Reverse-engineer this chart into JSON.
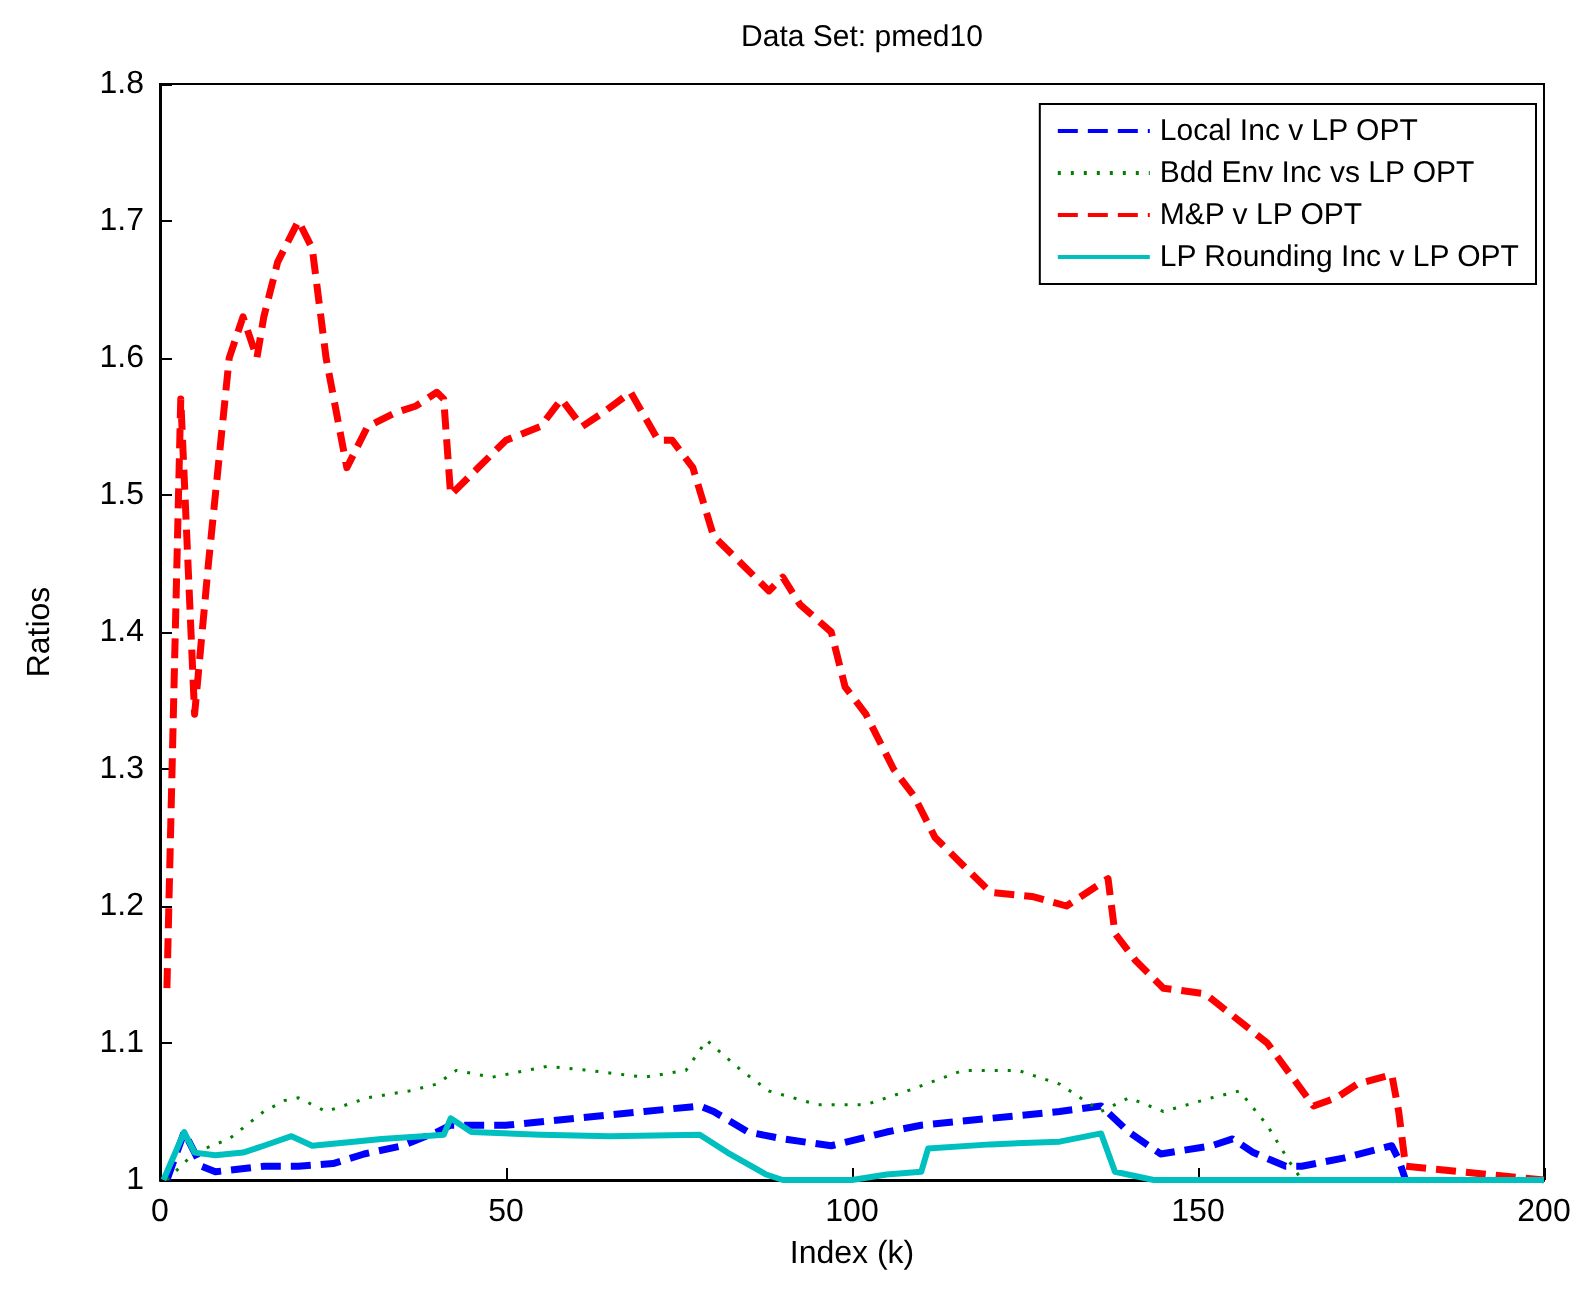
{
  "chart_data": {
    "type": "line",
    "title": "Data Set: pmed10",
    "xlabel": "Index (k)",
    "ylabel": "Ratios",
    "xlim": [
      0,
      200
    ],
    "xticks": [
      0,
      50,
      100,
      150,
      200
    ],
    "ylim": [
      1,
      1.8
    ],
    "yticks": [
      1,
      1.1,
      1.2,
      1.3,
      1.4,
      1.5,
      1.6,
      1.7,
      1.8
    ],
    "grid": false,
    "legend": "top right",
    "series": [
      {
        "name": "Local Inc v LP OPT",
        "color": "#0000ff",
        "line_style": "dashed",
        "x": [
          1,
          3.5,
          6,
          8,
          15,
          20,
          25,
          29.5,
          35,
          40,
          42,
          50,
          60,
          70,
          78,
          80,
          85,
          90,
          97,
          105,
          110,
          120,
          130,
          136,
          140,
          144.6,
          152,
          155,
          158,
          162.7,
          165,
          171,
          178,
          179,
          180
        ],
        "values": [
          1,
          1.035,
          1.01,
          1.006,
          1.01,
          1.01,
          1.012,
          1.019,
          1.025,
          1.035,
          1.04,
          1.04,
          1.045,
          1.05,
          1.054,
          1.05,
          1.035,
          1.03,
          1.025,
          1.035,
          1.04,
          1.045,
          1.05,
          1.054,
          1.035,
          1.019,
          1.025,
          1.03,
          1.02,
          1.01,
          1.01,
          1.016,
          1.025,
          1.015,
          1
        ]
      },
      {
        "name": "Bdd Env Inc vs LP OPT",
        "color": "#008000",
        "line_style": "dotted",
        "x": [
          1,
          5,
          10,
          15,
          18,
          20,
          24,
          30,
          36,
          40,
          42.8,
          48,
          56,
          62,
          70,
          76,
          79,
          84,
          88,
          95,
          102,
          108,
          116,
          124,
          130,
          136,
          140,
          145,
          152,
          156,
          160,
          163,
          165,
          200
        ],
        "values": [
          1,
          1.02,
          1.03,
          1.05,
          1.058,
          1.06,
          1.05,
          1.06,
          1.065,
          1.07,
          1.08,
          1.075,
          1.083,
          1.08,
          1.075,
          1.08,
          1.102,
          1.08,
          1.065,
          1.055,
          1.055,
          1.065,
          1.08,
          1.08,
          1.07,
          1.05,
          1.06,
          1.05,
          1.06,
          1.065,
          1.04,
          1.015,
          1,
          1
        ]
      },
      {
        "name": "M&P v LP OPT",
        "color": "#ff0000",
        "line_style": "dashed",
        "x": [
          1,
          3,
          5,
          7,
          10,
          12,
          14,
          15,
          17,
          20,
          22,
          24,
          27,
          30,
          34,
          37,
          40,
          41,
          42,
          46,
          50,
          55,
          58,
          61,
          64,
          68,
          72,
          74,
          77,
          80,
          84,
          88,
          90,
          92.5,
          97,
          99,
          102,
          106,
          109,
          112,
          116,
          120,
          126,
          131,
          137,
          138,
          141,
          145,
          151,
          155,
          160,
          166.7,
          170,
          173,
          178,
          179,
          180,
          200
        ],
        "values": [
          1.14,
          1.57,
          1.34,
          1.45,
          1.6,
          1.63,
          1.6,
          1.63,
          1.67,
          1.7,
          1.68,
          1.6,
          1.52,
          1.55,
          1.56,
          1.565,
          1.575,
          1.57,
          1.5,
          1.52,
          1.54,
          1.55,
          1.57,
          1.55,
          1.56,
          1.575,
          1.54,
          1.54,
          1.52,
          1.47,
          1.45,
          1.43,
          1.44,
          1.42,
          1.4,
          1.36,
          1.34,
          1.3,
          1.28,
          1.25,
          1.23,
          1.21,
          1.207,
          1.2,
          1.22,
          1.18,
          1.16,
          1.14,
          1.136,
          1.12,
          1.1,
          1.054,
          1.06,
          1.07,
          1.077,
          1.05,
          1.01,
          1
        ]
      },
      {
        "name": "LP Rounding Inc v LP OPT",
        "color": "#00bfbf",
        "line_style": "solid",
        "x": [
          0.5,
          3.5,
          5,
          8,
          12,
          15,
          19,
          22,
          28,
          32,
          38,
          41,
          42,
          45,
          55,
          65,
          78,
          82,
          87.6,
          90,
          100,
          105,
          110,
          111,
          120,
          130,
          136,
          138,
          143.6,
          145,
          200
        ],
        "values": [
          1,
          1.035,
          1.02,
          1.018,
          1.02,
          1.025,
          1.032,
          1.025,
          1.028,
          1.03,
          1.032,
          1.033,
          1.045,
          1.035,
          1.033,
          1.032,
          1.033,
          1.02,
          1.004,
          1,
          1,
          1.004,
          1.006,
          1.023,
          1.026,
          1.028,
          1.034,
          1.006,
          1,
          1,
          1
        ]
      }
    ]
  }
}
